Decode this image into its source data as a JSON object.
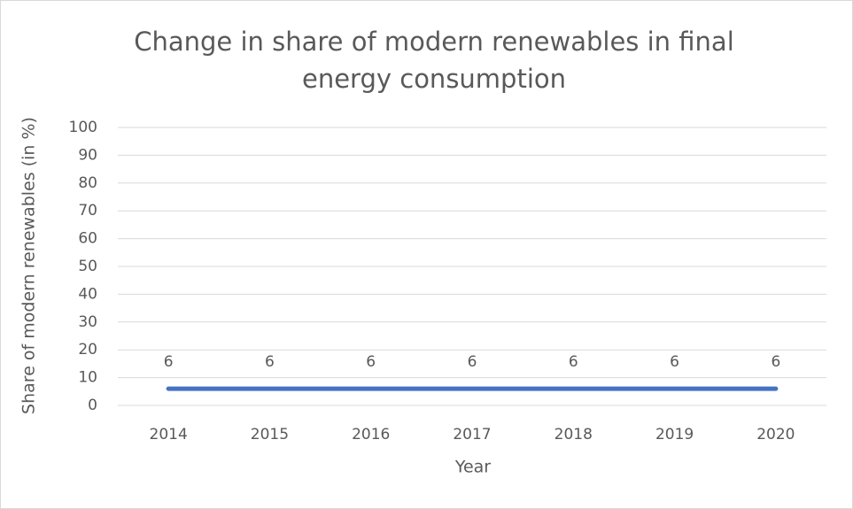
{
  "chart_data": {
    "type": "line",
    "title": "Change in share of modern renewables in final energy consumption",
    "x_label": "Year",
    "y_label": "Share of modern renewables (in %)",
    "categories": [
      "2014",
      "2015",
      "2016",
      "2017",
      "2018",
      "2019",
      "2020"
    ],
    "series": [
      {
        "name": "Share of modern renewables",
        "color": "#4472c4",
        "values": [
          6,
          6,
          6,
          6,
          6,
          6,
          6
        ]
      }
    ],
    "ylim": [
      0,
      100
    ],
    "yticks": [
      0,
      10,
      20,
      30,
      40,
      50,
      60,
      70,
      80,
      90,
      100
    ],
    "grid": true,
    "data_labels": true,
    "legend": false
  }
}
